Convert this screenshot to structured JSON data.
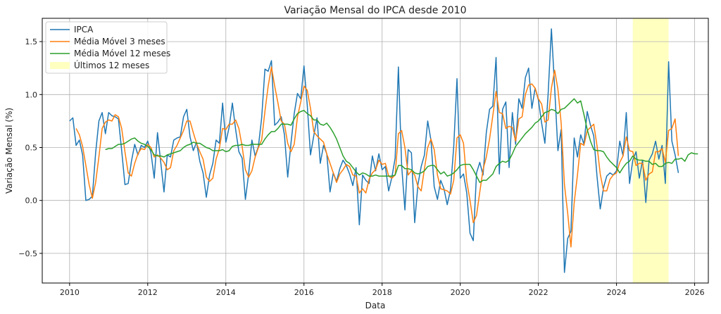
{
  "chart_data": {
    "type": "line",
    "title": "Variação Mensal do IPCA desde 2010",
    "xlabel": "Data",
    "ylabel": "Variação Mensal (%)",
    "xlim": [
      2009.3,
      2026.35
    ],
    "ylim": [
      -0.78,
      1.72
    ],
    "x_ticks": [
      2010,
      2012,
      2014,
      2016,
      2018,
      2020,
      2022,
      2024,
      2026
    ],
    "x_tick_labels": [
      "2010",
      "2012",
      "2014",
      "2016",
      "2018",
      "2020",
      "2022",
      "2024",
      "2026"
    ],
    "y_ticks": [
      -0.5,
      0.0,
      0.5,
      1.0,
      1.5
    ],
    "y_tick_labels": [
      "−0.5",
      "0.0",
      "0.5",
      "1.0",
      "1.5"
    ],
    "grid": true,
    "legend_position": "top-left",
    "start_month": "2010-01",
    "highlight": {
      "label": "Últimos 12 meses",
      "start": "2024-06",
      "end": "2025-05",
      "color": "#ffffc0"
    },
    "series": [
      {
        "name": "IPCA",
        "color": "#1f77b4",
        "values": [
          0.75,
          0.78,
          0.52,
          0.57,
          0.43,
          0.0,
          0.01,
          0.04,
          0.45,
          0.75,
          0.83,
          0.63,
          0.83,
          0.8,
          0.79,
          0.77,
          0.47,
          0.15,
          0.16,
          0.37,
          0.53,
          0.43,
          0.52,
          0.5,
          0.56,
          0.45,
          0.21,
          0.64,
          0.36,
          0.08,
          0.43,
          0.41,
          0.57,
          0.59,
          0.6,
          0.79,
          0.86,
          0.6,
          0.47,
          0.55,
          0.37,
          0.26,
          0.03,
          0.24,
          0.35,
          0.57,
          0.54,
          0.92,
          0.55,
          0.69,
          0.92,
          0.67,
          0.46,
          0.4,
          0.01,
          0.25,
          0.57,
          0.42,
          0.51,
          0.78,
          1.24,
          1.22,
          1.32,
          0.71,
          0.74,
          0.79,
          0.62,
          0.22,
          0.54,
          0.82,
          1.01,
          0.96,
          1.27,
          0.9,
          0.43,
          0.61,
          0.78,
          0.35,
          0.52,
          0.44,
          0.08,
          0.26,
          0.18,
          0.3,
          0.38,
          0.33,
          0.25,
          0.14,
          0.31,
          -0.23,
          0.24,
          0.19,
          0.16,
          0.42,
          0.28,
          0.44,
          0.29,
          0.32,
          0.09,
          0.22,
          0.4,
          1.26,
          0.33,
          -0.09,
          0.48,
          0.45,
          -0.21,
          0.15,
          0.32,
          0.43,
          0.75,
          0.57,
          0.13,
          0.01,
          0.19,
          0.11,
          -0.04,
          0.1,
          0.51,
          1.15,
          0.21,
          0.25,
          0.07,
          -0.31,
          -0.38,
          0.26,
          0.36,
          0.24,
          0.64,
          0.86,
          0.89,
          1.35,
          0.25,
          0.86,
          0.93,
          0.31,
          0.83,
          0.53,
          0.96,
          0.87,
          1.16,
          1.25,
          0.87,
          1.06,
          0.95,
          0.73,
          0.54,
          1.01,
          1.62,
          1.06,
          0.47,
          0.67,
          -0.68,
          -0.36,
          -0.29,
          0.59,
          0.41,
          0.62,
          0.53,
          0.84,
          0.71,
          0.61,
          0.23,
          -0.08,
          0.12,
          0.23,
          0.26,
          0.24,
          0.28,
          0.56,
          0.42,
          0.83,
          0.16,
          0.38,
          0.46,
          0.21,
          0.38,
          -0.02,
          0.38,
          0.44,
          0.56,
          0.39,
          0.52,
          0.16,
          1.31,
          0.56,
          0.43,
          0.26
        ]
      },
      {
        "name": "Média Móvel 3 meses",
        "color": "#ff7f0e",
        "values": [
          null,
          null,
          0.68,
          0.62,
          0.51,
          0.33,
          0.15,
          0.02,
          0.17,
          0.41,
          0.68,
          0.74,
          0.76,
          0.75,
          0.81,
          0.79,
          0.68,
          0.46,
          0.26,
          0.23,
          0.35,
          0.44,
          0.49,
          0.48,
          0.53,
          0.5,
          0.41,
          0.43,
          0.4,
          0.36,
          0.29,
          0.31,
          0.47,
          0.52,
          0.59,
          0.66,
          0.75,
          0.75,
          0.64,
          0.54,
          0.46,
          0.39,
          0.22,
          0.18,
          0.21,
          0.39,
          0.49,
          0.68,
          0.67,
          0.72,
          0.72,
          0.76,
          0.68,
          0.51,
          0.29,
          0.22,
          0.28,
          0.41,
          0.5,
          0.57,
          0.84,
          1.08,
          1.26,
          1.08,
          0.92,
          0.75,
          0.72,
          0.54,
          0.46,
          0.53,
          0.79,
          0.93,
          1.08,
          1.04,
          0.87,
          0.65,
          0.61,
          0.58,
          0.55,
          0.44,
          0.35,
          0.26,
          0.17,
          0.25,
          0.29,
          0.34,
          0.32,
          0.24,
          0.23,
          0.07,
          0.11,
          0.07,
          0.2,
          0.26,
          0.29,
          0.38,
          0.34,
          0.35,
          0.23,
          0.21,
          0.24,
          0.63,
          0.66,
          0.5,
          0.24,
          0.28,
          0.24,
          0.13,
          0.09,
          0.3,
          0.5,
          0.58,
          0.48,
          0.24,
          0.11,
          0.1,
          0.09,
          0.06,
          0.19,
          0.59,
          0.62,
          0.54,
          0.18,
          -0.0,
          -0.21,
          -0.14,
          0.08,
          0.29,
          0.41,
          0.58,
          0.8,
          1.03,
          0.83,
          0.82,
          0.68,
          0.7,
          0.69,
          0.56,
          0.77,
          0.79,
          1.0,
          1.09,
          1.1,
          1.06,
          0.96,
          0.91,
          0.74,
          0.76,
          1.06,
          1.23,
          1.05,
          0.73,
          0.15,
          -0.12,
          -0.44,
          -0.02,
          0.24,
          0.54,
          0.52,
          0.66,
          0.69,
          0.72,
          0.52,
          0.25,
          0.09,
          0.09,
          0.2,
          0.24,
          0.26,
          0.36,
          0.42,
          0.6,
          0.47,
          0.46,
          0.33,
          0.35,
          0.35,
          0.19,
          0.25,
          0.27,
          0.46,
          0.46,
          0.49,
          0.36,
          0.66,
          0.68,
          0.77,
          0.42
        ]
      },
      {
        "name": "Média Móvel 12 meses",
        "color": "#2ca02c",
        "values": [
          null,
          null,
          null,
          null,
          null,
          null,
          null,
          null,
          null,
          null,
          null,
          0.48,
          0.49,
          0.49,
          0.51,
          0.53,
          0.53,
          0.54,
          0.56,
          0.58,
          0.59,
          0.56,
          0.54,
          0.53,
          0.51,
          0.48,
          0.43,
          0.42,
          0.42,
          0.41,
          0.43,
          0.44,
          0.45,
          0.46,
          0.47,
          0.5,
          0.52,
          0.53,
          0.55,
          0.54,
          0.54,
          0.52,
          0.5,
          0.49,
          0.47,
          0.47,
          0.47,
          0.48,
          0.46,
          0.47,
          0.51,
          0.52,
          0.52,
          0.53,
          0.52,
          0.52,
          0.53,
          0.53,
          0.53,
          0.53,
          0.58,
          0.62,
          0.65,
          0.65,
          0.68,
          0.72,
          0.72,
          0.72,
          0.71,
          0.77,
          0.82,
          0.84,
          0.85,
          0.82,
          0.8,
          0.76,
          0.76,
          0.72,
          0.71,
          0.73,
          0.69,
          0.64,
          0.58,
          0.5,
          0.42,
          0.37,
          0.35,
          0.31,
          0.27,
          0.24,
          0.26,
          0.25,
          0.23,
          0.23,
          0.24,
          0.23,
          0.23,
          0.23,
          0.23,
          0.23,
          0.24,
          0.33,
          0.33,
          0.3,
          0.3,
          0.29,
          0.26,
          0.25,
          0.26,
          0.28,
          0.32,
          0.33,
          0.33,
          0.29,
          0.25,
          0.27,
          0.23,
          0.24,
          0.26,
          0.29,
          0.33,
          0.34,
          0.34,
          0.34,
          0.29,
          0.23,
          0.17,
          0.19,
          0.19,
          0.22,
          0.25,
          0.32,
          0.35,
          0.37,
          0.36,
          0.38,
          0.44,
          0.51,
          0.55,
          0.59,
          0.63,
          0.66,
          0.69,
          0.73,
          0.75,
          0.79,
          0.83,
          0.84,
          0.86,
          0.85,
          0.82,
          0.86,
          0.87,
          0.9,
          0.93,
          0.96,
          0.92,
          0.94,
          0.81,
          0.67,
          0.56,
          0.48,
          0.47,
          0.47,
          0.46,
          0.41,
          0.37,
          0.34,
          0.31,
          0.26,
          0.31,
          0.35,
          0.37,
          0.42,
          0.39,
          0.38,
          0.38,
          0.37,
          0.37,
          0.34,
          0.35,
          0.32,
          0.32,
          0.35,
          0.36,
          0.35,
          0.39,
          0.39,
          0.4,
          0.37,
          0.43,
          0.45,
          0.44,
          0.44
        ]
      }
    ]
  }
}
